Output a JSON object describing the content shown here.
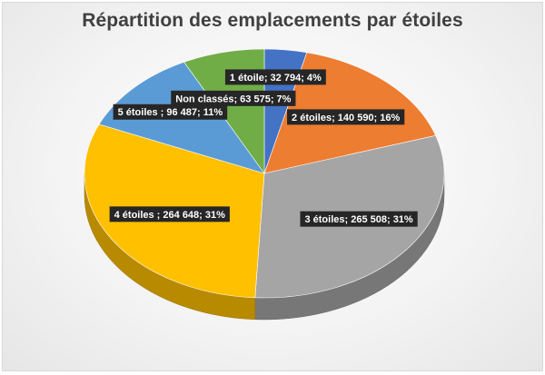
{
  "chart_data": {
    "type": "pie",
    "title": "Répartition des emplacements par étoiles",
    "style": "3d",
    "colors": {
      "slice_1": "#4472C4",
      "slice_2": "#ED7D31",
      "slice_3": "#A5A5A5",
      "slice_4": "#FFC000",
      "slice_5": "#5B9BD5",
      "slice_6": "#70AD47",
      "label_background": "#262626",
      "label_text": "#ffffff",
      "title": "#404040"
    },
    "slices": [
      {
        "label": "1 étoile; 32 794; 4%",
        "value": 32794
      },
      {
        "label": "2 étoiles; 140 590; 16%",
        "value": 140590
      },
      {
        "label": "3 étoiles; 265 508; 31%",
        "value": 265508
      },
      {
        "label": "4 étoiles ; 264 648; 31%",
        "value": 264648
      },
      {
        "label": "5 étoiles ; 96 487; 11%",
        "value": 96487
      },
      {
        "label": "Non classés; 63 575; 7%",
        "value": 63575
      }
    ]
  }
}
